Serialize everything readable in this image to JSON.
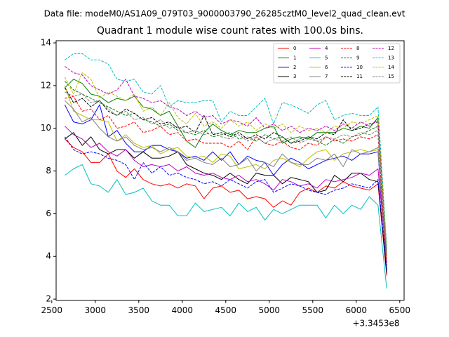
{
  "chart_data": {
    "type": "line",
    "suptitle": "Data file: modeM0/AS1A09_079T03_9000003790_26285cztM0_level2_quad_clean.evt",
    "title": "Quadrant 1 module wise count rates with 100.0s bins.",
    "xlabel": "",
    "ylabel": "",
    "x_offset_label": "+3.3453e8",
    "xlim": [
      2550,
      6550
    ],
    "ylim": [
      1.95,
      14.1
    ],
    "x_ticks": [
      2500,
      3000,
      3500,
      4000,
      4500,
      5000,
      5500,
      6000,
      6500
    ],
    "y_ticks": [
      2,
      4,
      6,
      8,
      10,
      12,
      14
    ],
    "x": [
      2650,
      2750,
      2850,
      2950,
      3050,
      3150,
      3250,
      3350,
      3450,
      3550,
      3650,
      3750,
      3850,
      3950,
      4050,
      4150,
      4250,
      4350,
      4450,
      4550,
      4650,
      4750,
      4850,
      4950,
      5050,
      5150,
      5250,
      5350,
      5450,
      5550,
      5650,
      5750,
      5850,
      5950,
      6050,
      6150,
      6250,
      6350
    ],
    "legend": {
      "loc": "upper right",
      "ncol": 4
    },
    "series": [
      {
        "name": "0",
        "color": "#ff0000",
        "dash": "solid",
        "values": [
          9.5,
          9.1,
          8.9,
          8.4,
          8.4,
          8.8,
          8.0,
          7.7,
          8.1,
          7.6,
          7.4,
          7.3,
          7.4,
          7.2,
          7.4,
          7.3,
          6.7,
          7.2,
          7.3,
          7.0,
          7.1,
          6.7,
          6.8,
          6.7,
          6.3,
          6.6,
          6.4,
          7.0,
          7.2,
          7.0,
          7.3,
          7.2,
          7.5,
          7.3,
          7.2,
          7.1,
          7.4,
          3.1
        ]
      },
      {
        "name": "1",
        "color": "#008000",
        "dash": "solid",
        "values": [
          11.9,
          12.3,
          12.1,
          11.6,
          11.5,
          11.2,
          11.4,
          11.3,
          11.5,
          11.0,
          10.9,
          10.6,
          10.8,
          10.1,
          9.4,
          9.1,
          9.8,
          10.2,
          9.9,
          9.7,
          9.9,
          9.8,
          9.8,
          10.0,
          10.1,
          9.3,
          9.5,
          9.6,
          9.5,
          9.8,
          9.8,
          9.8,
          10.0,
          9.9,
          10.1,
          10.0,
          10.5,
          4.2
        ]
      },
      {
        "name": "2",
        "color": "#0000ff",
        "dash": "solid",
        "values": [
          11.1,
          10.3,
          10.2,
          10.4,
          11.1,
          9.6,
          9.9,
          9.3,
          8.9,
          8.9,
          9.2,
          9.2,
          9.0,
          8.9,
          8.6,
          8.7,
          8.5,
          8.9,
          8.5,
          8.9,
          8.3,
          8.7,
          8.5,
          8.4,
          7.8,
          8.3,
          8.6,
          8.4,
          8.1,
          8.3,
          8.5,
          8.6,
          8.7,
          8.5,
          8.8,
          8.8,
          8.9,
          3.3
        ]
      },
      {
        "name": "3",
        "color": "#000000",
        "dash": "solid",
        "values": [
          9.5,
          9.8,
          9.2,
          9.6,
          9.0,
          8.8,
          9.0,
          9.0,
          8.6,
          8.9,
          8.6,
          8.6,
          8.7,
          8.9,
          8.3,
          8.1,
          7.9,
          7.8,
          7.6,
          7.9,
          7.6,
          7.4,
          7.9,
          7.8,
          7.8,
          7.4,
          7.7,
          7.6,
          7.5,
          7.0,
          7.1,
          7.8,
          7.5,
          7.9,
          7.9,
          7.6,
          7.5,
          3.2
        ]
      },
      {
        "name": "4",
        "color": "#bf00bf",
        "dash": "solid",
        "values": [
          10.1,
          9.7,
          9.5,
          9.1,
          9.3,
          8.9,
          8.7,
          9.0,
          8.5,
          8.2,
          8.3,
          8.2,
          8.3,
          8.0,
          8.2,
          7.9,
          7.8,
          7.9,
          7.7,
          7.6,
          7.8,
          7.5,
          7.6,
          7.4,
          7.1,
          7.6,
          7.5,
          7.3,
          7.4,
          7.2,
          7.6,
          7.5,
          7.6,
          7.7,
          7.9,
          7.8,
          8.1,
          3.8
        ]
      },
      {
        "name": "5",
        "color": "#00bfbf",
        "dash": "solid",
        "values": [
          7.8,
          8.1,
          8.3,
          7.4,
          7.3,
          7.0,
          7.6,
          6.9,
          7.0,
          7.2,
          6.6,
          6.4,
          6.4,
          5.9,
          5.9,
          6.5,
          6.1,
          6.2,
          6.3,
          5.9,
          6.5,
          6.1,
          6.3,
          5.7,
          6.2,
          6.0,
          6.2,
          6.4,
          6.4,
          6.4,
          5.8,
          6.4,
          6.0,
          6.4,
          6.2,
          6.8,
          6.4,
          2.5
        ]
      },
      {
        "name": "6",
        "color": "#bfbf00",
        "dash": "solid",
        "values": [
          12.0,
          10.8,
          10.6,
          10.4,
          10.4,
          10.3,
          9.4,
          9.7,
          9.3,
          9.1,
          9.2,
          8.8,
          9.0,
          9.1,
          8.7,
          8.6,
          8.7,
          8.4,
          8.8,
          8.7,
          8.1,
          8.2,
          8.3,
          8.1,
          8.5,
          8.6,
          8.4,
          8.2,
          8.6,
          8.9,
          9.0,
          8.5,
          8.8,
          8.9,
          9.0,
          8.9,
          9.0,
          3.6
        ]
      },
      {
        "name": "7",
        "color": "#808080",
        "dash": "solid",
        "values": [
          11.3,
          10.9,
          10.3,
          10.5,
          10.0,
          9.6,
          9.4,
          9.6,
          9.2,
          9.0,
          9.1,
          8.9,
          9.1,
          8.9,
          8.5,
          8.6,
          8.4,
          8.3,
          8.6,
          8.2,
          8.3,
          8.6,
          8.0,
          8.4,
          8.2,
          8.8,
          8.4,
          8.3,
          8.3,
          8.6,
          8.5,
          8.8,
          8.2,
          9.0,
          8.8,
          8.9,
          9.1,
          3.7
        ]
      },
      {
        "name": "8",
        "color": "#ff0000",
        "dash": "dashed",
        "values": [
          11.4,
          11.5,
          10.8,
          10.9,
          10.4,
          10.6,
          10.0,
          10.1,
          10.3,
          9.8,
          9.9,
          10.1,
          9.7,
          9.8,
          9.4,
          9.5,
          9.3,
          9.3,
          9.3,
          9.1,
          9.4,
          9.0,
          9.6,
          9.3,
          9.2,
          9.4,
          9.1,
          9.0,
          9.3,
          9.2,
          9.6,
          9.4,
          9.5,
          9.4,
          9.6,
          9.5,
          9.7,
          3.6
        ]
      },
      {
        "name": "9",
        "color": "#008000",
        "dash": "dashed",
        "values": [
          12.2,
          11.8,
          11.6,
          11.4,
          11.2,
          11.0,
          10.8,
          10.6,
          10.7,
          10.4,
          10.3,
          10.1,
          10.2,
          9.9,
          9.8,
          9.7,
          9.9,
          9.6,
          9.7,
          9.8,
          9.5,
          9.6,
          9.4,
          9.7,
          9.5,
          9.6,
          9.3,
          9.5,
          9.6,
          9.4,
          9.2,
          9.5,
          9.3,
          9.6,
          9.7,
          9.9,
          10.1,
          4.0
        ]
      },
      {
        "name": "10",
        "color": "#0000ff",
        "dash": "dashed",
        "values": [
          9.6,
          9.0,
          8.8,
          8.9,
          8.8,
          8.6,
          8.5,
          8.3,
          7.6,
          8.4,
          7.9,
          8.2,
          7.8,
          7.9,
          7.7,
          7.6,
          7.4,
          7.5,
          7.3,
          7.6,
          7.4,
          7.2,
          7.5,
          7.6,
          7.0,
          7.2,
          7.4,
          7.3,
          7.1,
          7.0,
          6.9,
          7.1,
          7.2,
          7.4,
          7.3,
          7.2,
          7.6,
          3.4
        ]
      },
      {
        "name": "11",
        "color": "#000000",
        "dash": "dashed",
        "values": [
          11.9,
          11.2,
          11.4,
          11.0,
          11.3,
          10.8,
          10.6,
          10.9,
          10.7,
          10.4,
          10.5,
          10.2,
          10.3,
          10.0,
          10.1,
          9.8,
          10.6,
          9.7,
          9.8,
          9.6,
          9.8,
          9.5,
          9.7,
          9.5,
          9.8,
          9.6,
          9.3,
          9.4,
          9.6,
          9.5,
          9.8,
          9.7,
          10.4,
          9.9,
          10.0,
          10.2,
          10.3,
          4.1
        ]
      },
      {
        "name": "12",
        "color": "#bf00bf",
        "dash": "dashed",
        "values": [
          12.9,
          12.6,
          12.5,
          12.0,
          11.8,
          11.6,
          11.8,
          12.3,
          11.5,
          11.4,
          11.2,
          11.3,
          11.0,
          10.9,
          10.6,
          10.8,
          10.5,
          10.6,
          10.2,
          10.4,
          10.3,
          10.1,
          10.5,
          10.0,
          10.2,
          9.9,
          10.1,
          9.8,
          10.0,
          9.9,
          10.1,
          9.9,
          10.2,
          10.0,
          10.3,
          10.1,
          10.4,
          4.3
        ]
      },
      {
        "name": "13",
        "color": "#00bfbf",
        "dash": "dashed",
        "values": [
          13.2,
          13.5,
          13.5,
          13.2,
          13.2,
          13.0,
          12.3,
          12.2,
          12.3,
          11.7,
          11.6,
          12.0,
          11.0,
          11.3,
          11.2,
          11.2,
          11.3,
          11.3,
          10.3,
          10.8,
          10.6,
          10.6,
          11.0,
          11.4,
          10.2,
          11.2,
          11.1,
          10.9,
          10.7,
          11.1,
          11.3,
          10.4,
          10.6,
          10.7,
          10.6,
          10.6,
          11.0,
          4.4
        ]
      },
      {
        "name": "14",
        "color": "#bfbf00",
        "dash": "dashed",
        "values": [
          12.4,
          11.6,
          12.6,
          12.3,
          11.4,
          11.7,
          11.5,
          11.3,
          11.6,
          10.8,
          11.0,
          10.6,
          11.2,
          10.5,
          10.2,
          10.7,
          10.1,
          10.3,
          10.0,
          10.4,
          10.1,
          10.3,
          9.9,
          10.2,
          10.0,
          10.2,
          9.8,
          10.1,
          9.9,
          10.0,
          9.8,
          10.1,
          10.0,
          10.3,
          10.2,
          10.4,
          10.6,
          4.2
        ]
      },
      {
        "name": "15",
        "color": "#808080",
        "dash": "dashed",
        "values": [
          11.7,
          11.5,
          11.6,
          11.2,
          11.3,
          10.9,
          10.6,
          10.8,
          10.4,
          10.5,
          10.2,
          10.4,
          10.0,
          10.1,
          9.8,
          9.9,
          9.7,
          9.8,
          9.6,
          9.5,
          9.7,
          9.4,
          9.6,
          9.3,
          9.5,
          9.4,
          9.6,
          9.3,
          9.5,
          9.4,
          9.6,
          9.5,
          9.7,
          9.6,
          9.8,
          9.7,
          9.9,
          4.0
        ]
      }
    ]
  }
}
